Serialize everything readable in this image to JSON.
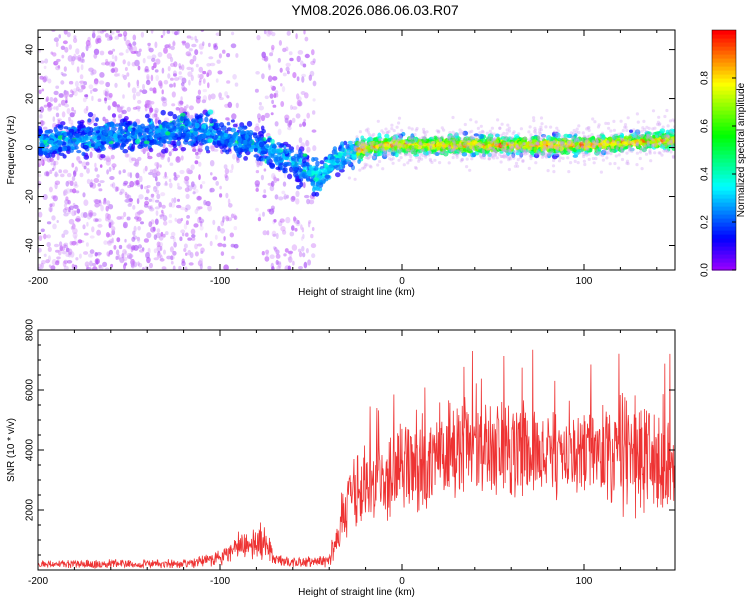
{
  "title": "YM08.2026.086.06.03.R07",
  "chart_data": [
    {
      "type": "heatmap",
      "title": "YM08.2026.086.06.03.R07",
      "xlabel": "Height of straight line (km)",
      "ylabel": "Frequency (Hz)",
      "xlim": [
        -200,
        150
      ],
      "ylim": [
        -50,
        48
      ],
      "xticks": [
        -200,
        -100,
        0,
        100
      ],
      "yticks": [
        -40,
        -20,
        0,
        20,
        40
      ],
      "ridge": {
        "x": [
          -200,
          -170,
          -150,
          -130,
          -120,
          -110,
          -100,
          -90,
          -80,
          -70,
          -60,
          -50,
          -45,
          -40,
          -35,
          -30,
          -20,
          -10,
          0,
          20,
          40,
          60,
          80,
          100,
          120,
          150
        ],
        "freq": [
          2,
          4,
          5,
          6,
          8,
          7,
          5,
          3,
          1,
          -2,
          -6,
          -10,
          -13,
          -7,
          -4,
          -3,
          0,
          1,
          1,
          1,
          1,
          1,
          1,
          1,
          2,
          3
        ]
      },
      "colorbar": {
        "label": "Normalized spectral amplitude",
        "range": [
          0.0,
          1.0
        ],
        "ticks": [
          "0.0",
          "0.2",
          "0.4",
          "0.6",
          "0.8"
        ]
      }
    },
    {
      "type": "line",
      "xlabel": "Height of straight line (km)",
      "ylabel": "SNR (10 * v/v)",
      "xlim": [
        -200,
        150
      ],
      "ylim": [
        0,
        8000
      ],
      "xticks": [
        -200,
        -100,
        0,
        100
      ],
      "yticks": [
        2000,
        4000,
        6000,
        8000
      ],
      "color": "#ee3333",
      "envelope": {
        "x": [
          -200,
          -120,
          -100,
          -90,
          -80,
          -75,
          -70,
          -60,
          -40,
          -35,
          -30,
          -20,
          -10,
          0,
          10,
          20,
          30,
          40,
          50,
          60,
          70,
          80,
          90,
          100,
          110,
          120,
          130,
          140,
          150
        ],
        "mean": [
          200,
          200,
          400,
          800,
          1000,
          900,
          350,
          250,
          300,
          1200,
          2300,
          2800,
          3100,
          3300,
          3500,
          3700,
          3900,
          4100,
          4200,
          4100,
          4000,
          3900,
          3900,
          3900,
          3800,
          3700,
          3800,
          3700,
          3600
        ],
        "spread": [
          120,
          150,
          250,
          400,
          600,
          500,
          200,
          150,
          200,
          700,
          1200,
          1400,
          1500,
          1500,
          1500,
          1600,
          1700,
          1800,
          1800,
          1700,
          1600,
          1500,
          1500,
          1500,
          1600,
          1700,
          1900,
          1800,
          1800
        ]
      }
    }
  ]
}
